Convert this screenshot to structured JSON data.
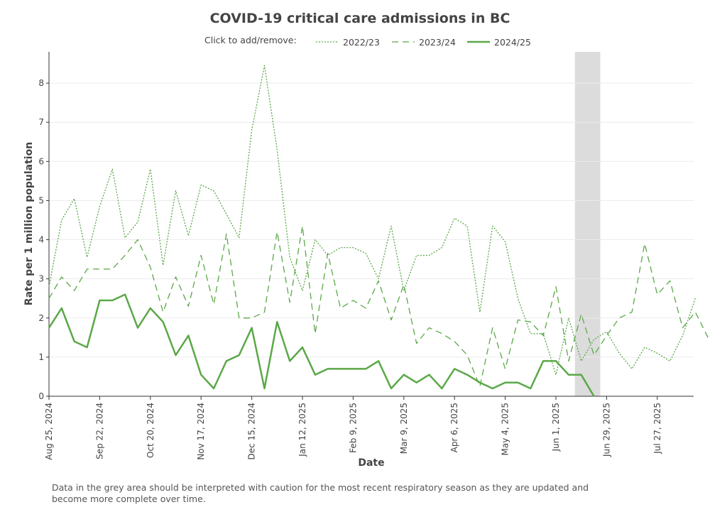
{
  "chart_data": {
    "type": "line",
    "title": "COVID-19 critical care admissions in BC",
    "legend_prompt": "Click to add/remove:",
    "xlabel": "Date",
    "ylabel": "Rate per 1 million population",
    "ylim": [
      0,
      8.8
    ],
    "yticks": [
      "0",
      "1",
      "2",
      "3",
      "4",
      "5",
      "6",
      "7",
      "8"
    ],
    "xticks": [
      "Aug 25, 2024",
      "Sep 22, 2024",
      "Oct 20, 2024",
      "Nov 17, 2024",
      "Dec 15, 2024",
      "Jan 12, 2025",
      "Feb 9, 2025",
      "Mar 9, 2025",
      "Apr 6, 2025",
      "May 4, 2025",
      "Jun 1, 2025",
      "Jun 29, 2025",
      "Jul 27, 2025"
    ],
    "grid": "horizontal",
    "legend_position": "top-center",
    "shaded_region": {
      "from_week": 41.5,
      "to_week": 43.5,
      "color": "#dcdcdc"
    },
    "series": [
      {
        "name": "2022/23",
        "style": "dotted",
        "color": "#5aa847",
        "values": [
          2.8,
          4.5,
          5.05,
          3.55,
          4.85,
          5.8,
          4.05,
          4.45,
          5.8,
          3.35,
          5.25,
          4.1,
          5.4,
          5.25,
          4.65,
          4.05,
          6.8,
          8.45,
          6.3,
          3.55,
          2.7,
          4.0,
          3.6,
          3.8,
          3.8,
          3.65,
          3.0,
          4.35,
          2.7,
          3.6,
          3.6,
          3.8,
          4.55,
          4.35,
          2.15,
          4.35,
          3.95,
          2.5,
          1.6,
          1.6,
          0.55,
          2.0,
          0.9,
          1.45,
          1.65,
          1.1,
          0.7,
          1.25,
          1.1,
          0.9,
          1.55,
          2.5
        ]
      },
      {
        "name": "2023/24",
        "style": "dashed",
        "color": "#5aa847",
        "values": [
          2.5,
          3.05,
          2.7,
          3.25,
          3.25,
          3.25,
          3.6,
          4.0,
          3.3,
          2.15,
          3.05,
          2.3,
          3.6,
          2.35,
          4.15,
          2.0,
          2.0,
          2.15,
          4.2,
          2.4,
          4.35,
          1.6,
          3.65,
          2.25,
          2.45,
          2.25,
          2.95,
          1.95,
          2.85,
          1.35,
          1.75,
          1.6,
          1.4,
          1.05,
          0.25,
          1.75,
          0.7,
          1.95,
          1.9,
          1.55,
          2.8,
          0.9,
          2.1,
          1.05,
          1.55,
          2.0,
          2.15,
          3.9,
          2.6,
          2.95,
          1.75,
          2.15,
          1.5
        ]
      },
      {
        "name": "2024/25",
        "style": "solid",
        "color": "#5aa847",
        "values": [
          1.75,
          2.25,
          1.4,
          1.25,
          2.45,
          2.45,
          2.6,
          1.75,
          2.25,
          1.9,
          1.05,
          1.55,
          0.55,
          0.2,
          0.9,
          1.05,
          1.75,
          0.2,
          1.9,
          0.9,
          1.25,
          0.55,
          0.7,
          0.7,
          0.7,
          0.7,
          0.9,
          0.2,
          0.55,
          0.35,
          0.55,
          0.2,
          0.7,
          0.55,
          0.35,
          0.2,
          0.35,
          0.35,
          0.2,
          0.9,
          0.9,
          0.55,
          0.55,
          0.0
        ]
      }
    ]
  },
  "footnote": "Data in the grey area should be interpreted with caution for the most recent respiratory season as they are updated and become more complete over time."
}
